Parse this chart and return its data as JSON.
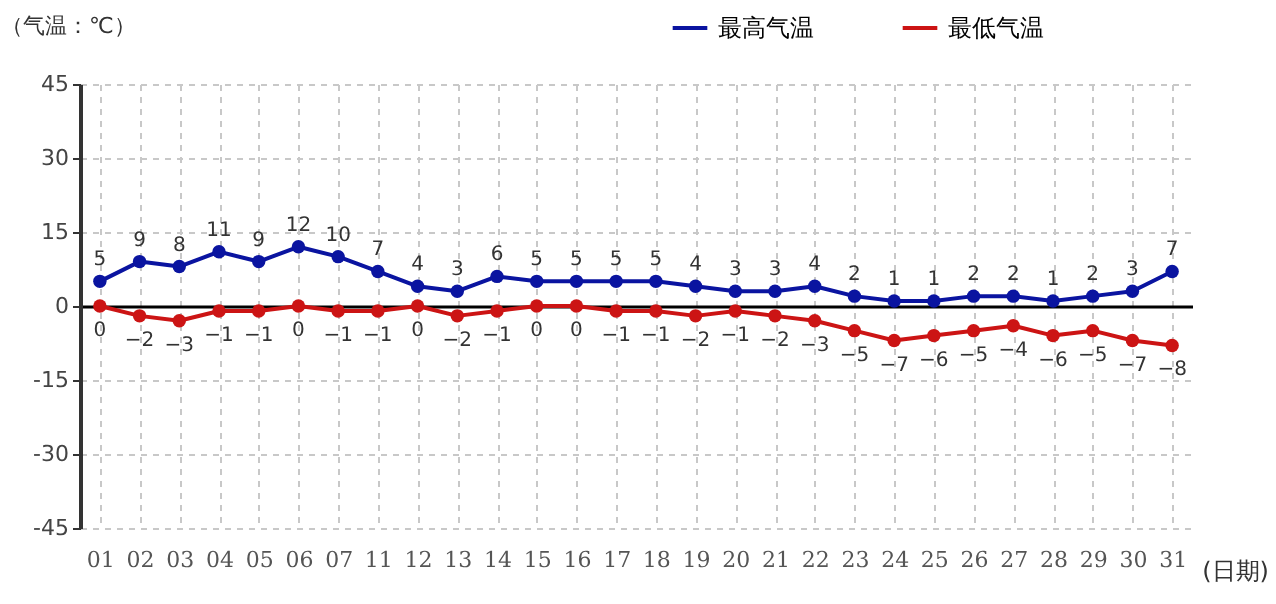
{
  "chart_data": {
    "type": "line",
    "ylabel": "（气温：℃）",
    "xlabel": "(日期)",
    "categories": [
      "01",
      "02",
      "03",
      "04",
      "05",
      "06",
      "07",
      "11",
      "12",
      "13",
      "14",
      "15",
      "16",
      "17",
      "18",
      "19",
      "20",
      "21",
      "22",
      "23",
      "24",
      "25",
      "26",
      "27",
      "28",
      "29",
      "30",
      "31"
    ],
    "series": [
      {
        "name": "最高气温",
        "color": "#0a14a0",
        "values": [
          5,
          9,
          8,
          11,
          9,
          12,
          10,
          7,
          4,
          3,
          6,
          5,
          5,
          5,
          5,
          4,
          3,
          3,
          4,
          2,
          1,
          1,
          2,
          2,
          1,
          2,
          3,
          7
        ]
      },
      {
        "name": "最低气温",
        "color": "#cc1414",
        "values": [
          0,
          -2,
          -3,
          -1,
          -1,
          0,
          -1,
          -1,
          0,
          -2,
          -1,
          0,
          0,
          -1,
          -1,
          -2,
          -1,
          -2,
          -3,
          -5,
          -7,
          -6,
          -5,
          -4,
          -6,
          -5,
          -7,
          -8
        ]
      }
    ],
    "ylim": [
      -45,
      45
    ],
    "yticks": [
      -45,
      -30,
      -15,
      0,
      15,
      30,
      45
    ],
    "grid": true,
    "legend": "top",
    "marker": "circle",
    "line_style": "solid",
    "data_labels": true
  }
}
